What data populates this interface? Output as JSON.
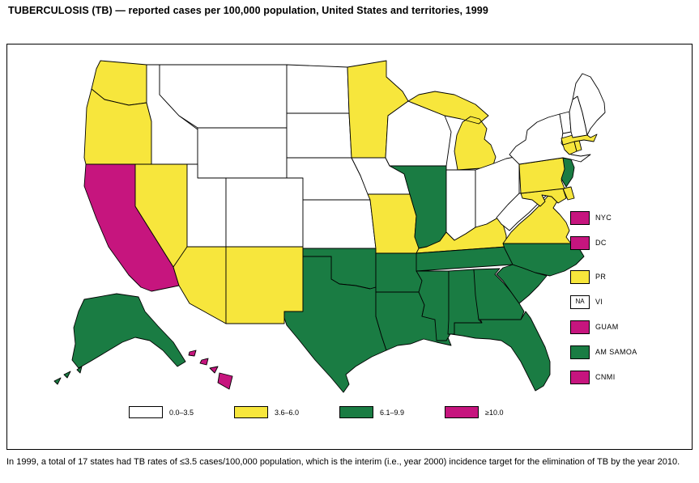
{
  "title": "TUBERCULOSIS (TB) — reported cases per 100,000 population, United States and territories, 1999",
  "caption": "In 1999, a total of 17 states had TB rates of ≤3.5 cases/100,000 population, which is the interim (i.e., year 2000) incidence target for the elimination of TB by the year 2010.",
  "category_colors": {
    "0.0–3.5": "#FFFFFF",
    "3.6–6.0": "#F7E63C",
    "6.1–9.9": "#1A7C43",
    "≥10.0": "#C6157E",
    "NA": "#FFFFFF"
  },
  "legend": [
    "0.0–3.5",
    "3.6–6.0",
    "6.1–9.9",
    "≥10.0"
  ],
  "territories": [
    {
      "label": "NYC",
      "category": "≥10.0",
      "box_text": ""
    },
    {
      "label": "DC",
      "category": "≥10.0",
      "box_text": ""
    },
    {
      "label": "PR",
      "category": "3.6–6.0",
      "box_text": ""
    },
    {
      "label": "VI",
      "category": "NA",
      "box_text": "NA"
    },
    {
      "label": "GUAM",
      "category": "≥10.0",
      "box_text": ""
    },
    {
      "label": "AM SAMOA",
      "category": "6.1–9.9",
      "box_text": ""
    },
    {
      "label": "CNMI",
      "category": "≥10.0",
      "box_text": ""
    }
  ],
  "chart_data": {
    "type": "choropleth",
    "title": "TUBERCULOSIS (TB) — reported cases per 100,000 population, United States and territories, 1999",
    "unit": "reported TB cases per 100,000 population",
    "year": 1999,
    "categories": [
      "0.0–3.5",
      "3.6–6.0",
      "6.1–9.9",
      "≥10.0"
    ],
    "legend_position": "bottom",
    "states": {
      "AL": "6.1–9.9",
      "AK": "6.1–9.9",
      "AZ": "3.6–6.0",
      "AR": "6.1–9.9",
      "CA": "≥10.0",
      "CO": "0.0–3.5",
      "CT": "3.6–6.0",
      "DE": "3.6–6.0",
      "FL": "6.1–9.9",
      "GA": "6.1–9.9",
      "HI": "≥10.0",
      "ID": "0.0–3.5",
      "IL": "6.1–9.9",
      "IN": "0.0–3.5",
      "IA": "0.0–3.5",
      "KS": "0.0–3.5",
      "KY": "3.6–6.0",
      "LA": "6.1–9.9",
      "ME": "0.0–3.5",
      "MD": "3.6–6.0",
      "MA": "3.6–6.0",
      "MI": "3.6–6.0",
      "MN": "3.6–6.0",
      "MS": "6.1–9.9",
      "MO": "3.6–6.0",
      "MT": "0.0–3.5",
      "NE": "0.0–3.5",
      "NV": "3.6–6.0",
      "NH": "0.0–3.5",
      "NJ": "6.1–9.9",
      "NM": "3.6–6.0",
      "NY": "0.0–3.5",
      "NC": "6.1–9.9",
      "ND": "0.0–3.5",
      "OH": "0.0–3.5",
      "OK": "6.1–9.9",
      "OR": "3.6–6.0",
      "PA": "3.6–6.0",
      "RI": "3.6–6.0",
      "SC": "6.1–9.9",
      "SD": "0.0–3.5",
      "TN": "6.1–9.9",
      "TX": "6.1–9.9",
      "UT": "0.0–3.5",
      "VT": "0.0–3.5",
      "VA": "3.6–6.0",
      "WA": "3.6–6.0",
      "WV": "0.0–3.5",
      "WI": "0.0–3.5",
      "WY": "0.0–3.5"
    },
    "territories": {
      "NYC": "≥10.0",
      "DC": "≥10.0",
      "PR": "3.6–6.0",
      "VI": "NA",
      "GUAM": "≥10.0",
      "AM SAMOA": "6.1–9.9",
      "CNMI": "≥10.0"
    }
  }
}
